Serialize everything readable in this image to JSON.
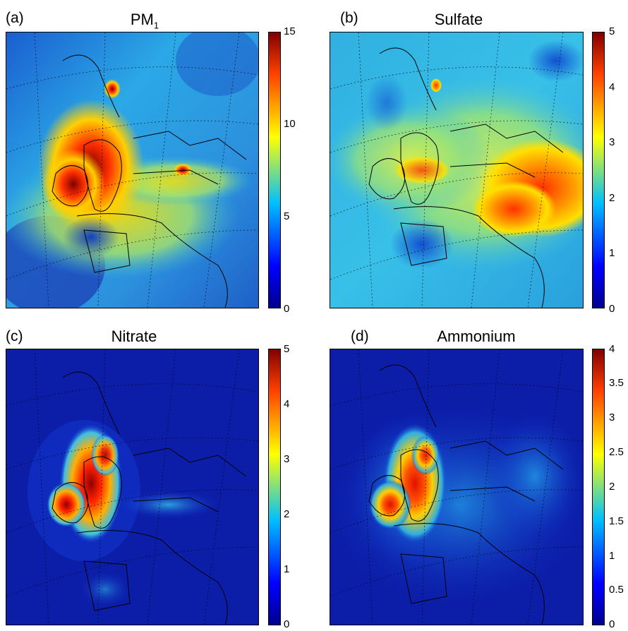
{
  "panels": [
    {
      "label": "(a)",
      "title": "PM",
      "title_sub": "1",
      "colorbar_ticks": [
        "15",
        "10",
        "5",
        "0"
      ],
      "colorbar_range": [
        0,
        15
      ]
    },
    {
      "label": "(b)",
      "title": "Sulfate",
      "title_sub": "",
      "colorbar_ticks": [
        "5",
        "4",
        "3",
        "2",
        "1",
        "0"
      ],
      "colorbar_range": [
        0,
        5
      ]
    },
    {
      "label": "(c)",
      "title": "Nitrate",
      "title_sub": "",
      "colorbar_ticks": [
        "5",
        "4",
        "3",
        "2",
        "1",
        "0"
      ],
      "colorbar_range": [
        0,
        5
      ]
    },
    {
      "label": "(d)",
      "title": "Ammonium",
      "title_sub": "",
      "colorbar_ticks": [
        "4",
        "3.5",
        "3",
        "2.5",
        "2",
        "1.5",
        "1",
        "0.5",
        "0"
      ],
      "colorbar_range": [
        0,
        4
      ]
    }
  ],
  "colormap": [
    "#00008f",
    "#0000ff",
    "#00bfff",
    "#ffff00",
    "#ff4000",
    "#800000"
  ]
}
